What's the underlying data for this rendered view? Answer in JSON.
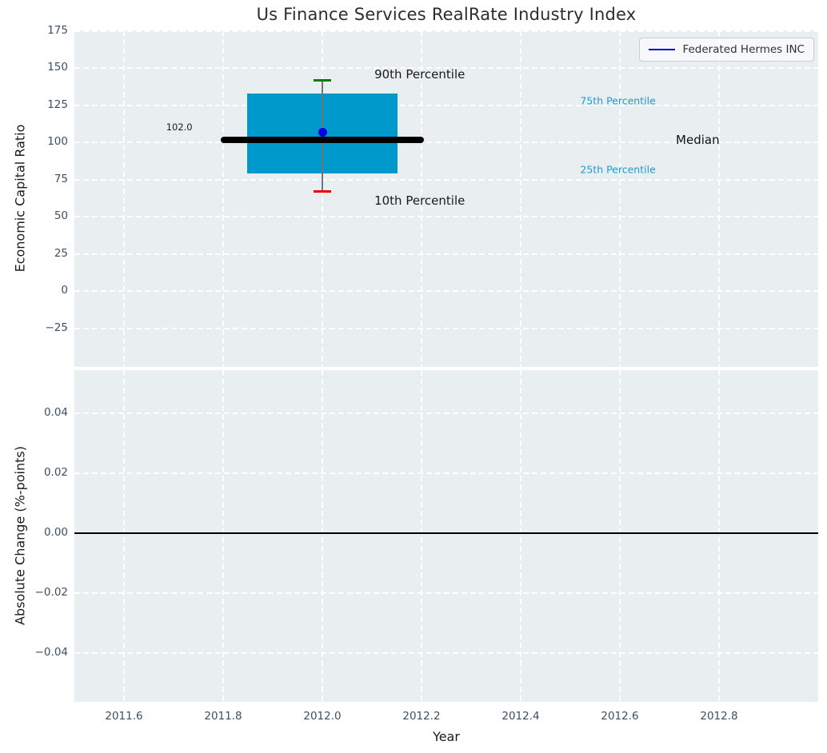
{
  "colors": {
    "figure_bg": "#ffffff",
    "plot_bg": "#e9eef0",
    "grid": "#ffffff",
    "tick_label": "#3d4f63",
    "text": "#1a1a1a"
  },
  "chart_data": [
    {
      "type": "boxplot",
      "panel": "top",
      "title": "Us Finance Services RealRate Industry Index",
      "ylabel": "Economic Capital Ratio",
      "xlim": [
        2011.5,
        2013.0
      ],
      "ylim": [
        -51,
        175.5
      ],
      "xticks": [
        2011.6,
        2011.8,
        2012.0,
        2012.2,
        2012.4,
        2012.6,
        2012.8
      ],
      "yticks": [
        175,
        150,
        125,
        100,
        75,
        50,
        25,
        0,
        -25
      ],
      "ytick_labels": [
        "175",
        "150",
        "125",
        "100",
        "75",
        "50",
        "25",
        "0",
        "−25"
      ],
      "grid": "white dashed, on",
      "legend": {
        "label": "Federated Hermes INC",
        "line_color": "#0000cc",
        "position": "upper right"
      },
      "box": {
        "x": 2012.0,
        "p90": 142,
        "p75": 133,
        "median": 102,
        "p25": 79,
        "p10": 67,
        "median_label": "102.0",
        "half_width": 0.152,
        "median_half_width": 0.205,
        "cap_half_width": 0.017,
        "box_color": "#0099cc",
        "median_color": "#000000",
        "p90_cap_color": "#007d00",
        "p10_cap_color": "#ee0000",
        "whisker_color": "#6b7680"
      },
      "series": [
        {
          "name": "Federated Hermes INC",
          "x": 2012.0,
          "value": 107,
          "marker": "dot",
          "color": "#0000e0",
          "radius": 5.5
        }
      ],
      "annotations": [
        {
          "text": "90th Percentile",
          "x": 2012.105,
          "y": 146,
          "color": "#1a1a1a",
          "size": 15
        },
        {
          "text": "10th Percentile",
          "x": 2012.105,
          "y": 61,
          "color": "#1a1a1a",
          "size": 15
        },
        {
          "text": "102.0",
          "x": 2011.685,
          "y": 110.5,
          "color": "#1a1a1a",
          "size": 11.5
        },
        {
          "text": "75th Percentile",
          "x": 2012.52,
          "y": 128,
          "color": "#1b9cd0",
          "size": 12.5
        },
        {
          "text": "25th Percentile",
          "x": 2012.52,
          "y": 82,
          "color": "#1b9cd0",
          "size": 12.5
        },
        {
          "text": "Median",
          "x": 2012.713,
          "y": 102,
          "color": "#111111",
          "size": 15
        }
      ]
    },
    {
      "type": "line",
      "panel": "bottom",
      "ylabel": "Absolute Change (%-points)",
      "xlabel": "Year",
      "xlim": [
        2011.5,
        2013.0
      ],
      "ylim": [
        -0.0563,
        0.0544
      ],
      "xticks": [
        2011.6,
        2011.8,
        2012.0,
        2012.2,
        2012.4,
        2012.6,
        2012.8
      ],
      "xtick_labels": [
        "2011.6",
        "2011.8",
        "2012.0",
        "2012.2",
        "2012.4",
        "2012.6",
        "2012.8"
      ],
      "yticks": [
        0.04,
        0.02,
        0.0,
        -0.02,
        -0.04
      ],
      "ytick_labels": [
        "0.04",
        "0.02",
        "0.00",
        "−0.02",
        "−0.04"
      ],
      "grid": "white dashed, on",
      "zero_line": {
        "y": 0.0,
        "color": "#000000"
      },
      "series": []
    }
  ]
}
